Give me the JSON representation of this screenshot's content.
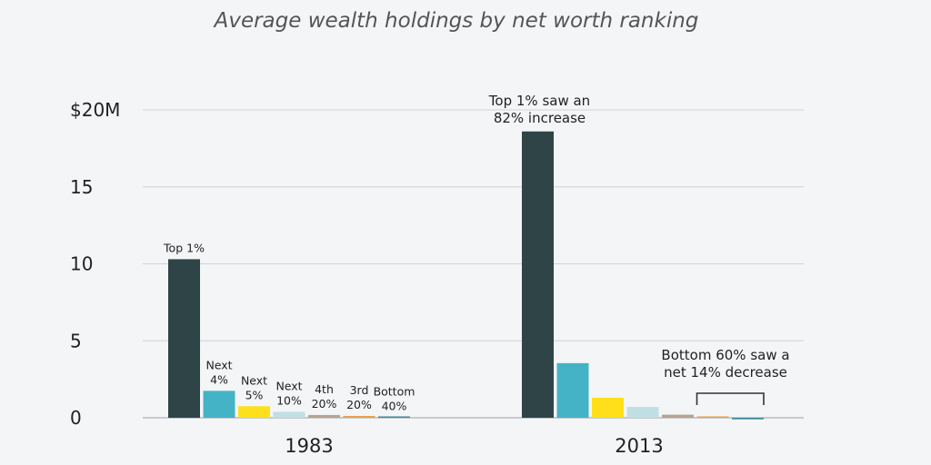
{
  "chart_data": {
    "type": "bar",
    "title": "Average wealth holdings by net worth ranking",
    "xlabel": "",
    "ylabel": "",
    "ylim": [
      0,
      20
    ],
    "y_ticks": [
      "0",
      "5",
      "10",
      "15",
      "$20M"
    ],
    "y_tick_values": [
      0,
      5,
      10,
      15,
      20
    ],
    "grid": true,
    "categories": [
      "1983",
      "2013"
    ],
    "series": [
      {
        "name": "Top 1%",
        "label_lines": [
          "Top 1%"
        ],
        "color": "#2e4446",
        "values": [
          10.3,
          18.6
        ]
      },
      {
        "name": "Next 4%",
        "label_lines": [
          "Next",
          "4%"
        ],
        "color": "#45b3c6",
        "values": [
          1.75,
          3.55
        ]
      },
      {
        "name": "Next 5%",
        "label_lines": [
          "Next",
          "5%"
        ],
        "color": "#fde019",
        "values": [
          0.75,
          1.3
        ]
      },
      {
        "name": "Next 10%",
        "label_lines": [
          "Next",
          "10%"
        ],
        "color": "#bfdfe4",
        "values": [
          0.38,
          0.7
        ]
      },
      {
        "name": "4th 20%",
        "label_lines": [
          "4th",
          "20%"
        ],
        "color": "#b8a48e",
        "values": [
          0.18,
          0.2
        ]
      },
      {
        "name": "3rd 20%",
        "label_lines": [
          "3rd",
          "20%"
        ],
        "color": "#e8a04c",
        "values": [
          0.12,
          0.06
        ]
      },
      {
        "name": "Bottom 40%",
        "label_lines": [
          "Bottom",
          "40%"
        ],
        "color": "#3a8a9a",
        "values": [
          0.02,
          -0.1
        ]
      }
    ],
    "annotations": [
      {
        "text_lines": [
          "Top 1% saw an",
          "82% increase"
        ]
      },
      {
        "text_lines": [
          "Bottom 60% saw a",
          "net 14% decrease"
        ]
      }
    ]
  }
}
